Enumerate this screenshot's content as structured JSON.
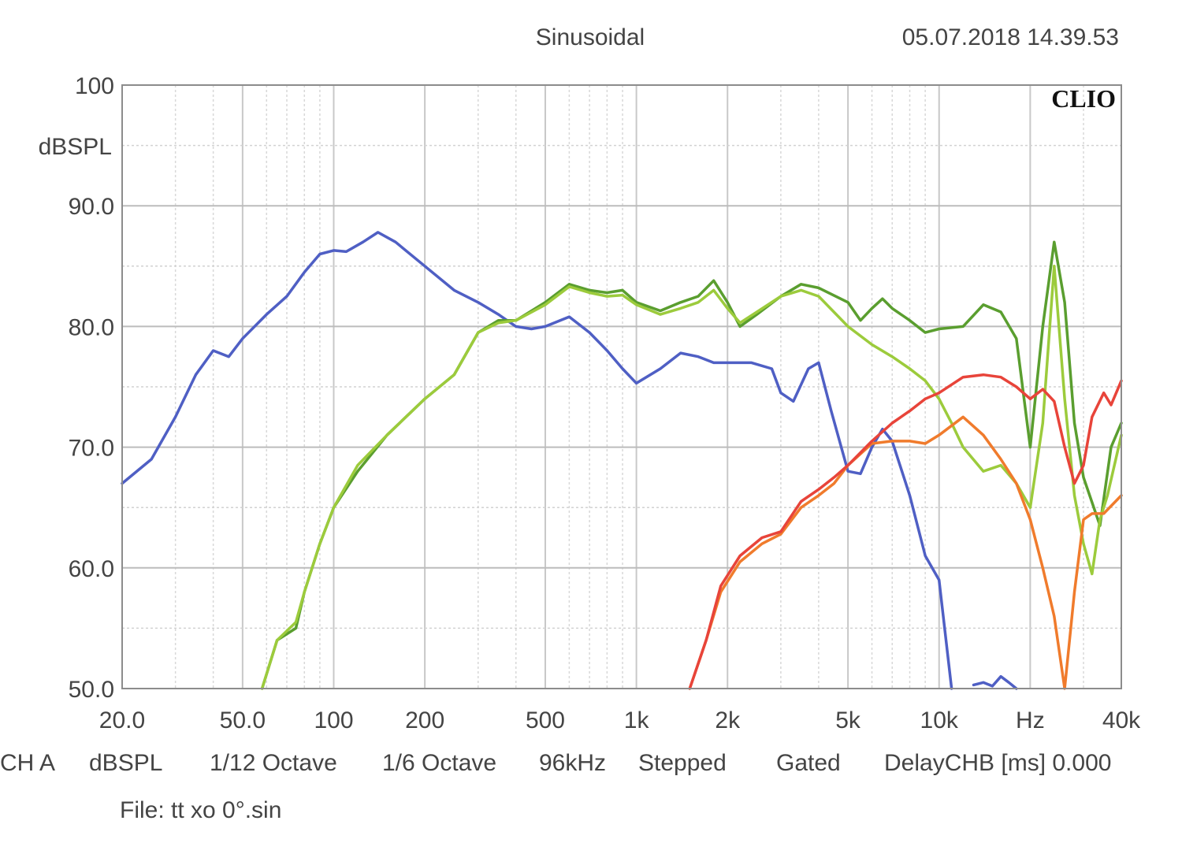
{
  "header": {
    "mode": "Sinusoidal",
    "datetime": "05.07.2018 14.39.53",
    "brand": "CLIO"
  },
  "chart_data": {
    "type": "line",
    "title": "",
    "ylabel": "dBSPL",
    "xscale": "log",
    "xlim": [
      20,
      40000
    ],
    "ylim": [
      50,
      100
    ],
    "grid": true,
    "y_tick_labels": [
      "100",
      "90.0",
      "80.0",
      "70.0",
      "60.0",
      "50.0"
    ],
    "x_ticks": [
      {
        "value": 20,
        "label": "20.0"
      },
      {
        "value": 50,
        "label": "50.0"
      },
      {
        "value": 100,
        "label": "100"
      },
      {
        "value": 200,
        "label": "200"
      },
      {
        "value": 500,
        "label": "500"
      },
      {
        "value": 1000,
        "label": "1k"
      },
      {
        "value": 2000,
        "label": "2k"
      },
      {
        "value": 5000,
        "label": "5k"
      },
      {
        "value": 10000,
        "label": "10k"
      },
      {
        "value": 20000,
        "label": "Hz"
      },
      {
        "value": 40000,
        "label": "40k"
      }
    ],
    "series": [
      {
        "color": "#4f5fc4",
        "points": [
          [
            20,
            67
          ],
          [
            25,
            69
          ],
          [
            30,
            72.5
          ],
          [
            35,
            76
          ],
          [
            40,
            78
          ],
          [
            45,
            77.5
          ],
          [
            50,
            79
          ],
          [
            60,
            81
          ],
          [
            70,
            82.5
          ],
          [
            80,
            84.5
          ],
          [
            90,
            86
          ],
          [
            100,
            86.3
          ],
          [
            110,
            86.2
          ],
          [
            125,
            87
          ],
          [
            140,
            87.8
          ],
          [
            160,
            87
          ],
          [
            200,
            85
          ],
          [
            250,
            83
          ],
          [
            300,
            82
          ],
          [
            350,
            81
          ],
          [
            400,
            80
          ],
          [
            450,
            79.8
          ],
          [
            500,
            80
          ],
          [
            600,
            80.8
          ],
          [
            700,
            79.5
          ],
          [
            800,
            78
          ],
          [
            900,
            76.5
          ],
          [
            1000,
            75.3
          ],
          [
            1200,
            76.5
          ],
          [
            1400,
            77.8
          ],
          [
            1600,
            77.5
          ],
          [
            1800,
            77
          ],
          [
            2000,
            77
          ],
          [
            2400,
            77
          ],
          [
            2800,
            76.5
          ],
          [
            3000,
            74.5
          ],
          [
            3300,
            73.8
          ],
          [
            3700,
            76.5
          ],
          [
            4000,
            77
          ],
          [
            4400,
            73
          ],
          [
            5000,
            68
          ],
          [
            5500,
            67.8
          ],
          [
            6000,
            70
          ],
          [
            6500,
            71.5
          ],
          [
            7000,
            70.5
          ],
          [
            8000,
            66
          ],
          [
            9000,
            61
          ],
          [
            10000,
            59
          ],
          [
            11000,
            50
          ]
        ]
      },
      {
        "color": "#5a9e2f",
        "points": [
          [
            58,
            50
          ],
          [
            65,
            54
          ],
          [
            75,
            55
          ],
          [
            80,
            58
          ],
          [
            90,
            62
          ],
          [
            100,
            65
          ],
          [
            120,
            68
          ],
          [
            150,
            71
          ],
          [
            200,
            74
          ],
          [
            250,
            76
          ],
          [
            300,
            79.5
          ],
          [
            350,
            80.5
          ],
          [
            400,
            80.5
          ],
          [
            500,
            82
          ],
          [
            600,
            83.5
          ],
          [
            700,
            83
          ],
          [
            800,
            82.8
          ],
          [
            900,
            83
          ],
          [
            1000,
            82
          ],
          [
            1200,
            81.3
          ],
          [
            1400,
            82
          ],
          [
            1600,
            82.5
          ],
          [
            1800,
            83.8
          ],
          [
            2000,
            82
          ],
          [
            2200,
            80
          ],
          [
            2500,
            81
          ],
          [
            3000,
            82.5
          ],
          [
            3500,
            83.5
          ],
          [
            4000,
            83.2
          ],
          [
            5000,
            82
          ],
          [
            5500,
            80.5
          ],
          [
            6000,
            81.5
          ],
          [
            6500,
            82.3
          ],
          [
            7000,
            81.5
          ],
          [
            8000,
            80.5
          ],
          [
            9000,
            79.5
          ],
          [
            10000,
            79.8
          ],
          [
            12000,
            80
          ],
          [
            14000,
            81.8
          ],
          [
            16000,
            81.2
          ],
          [
            18000,
            79
          ],
          [
            20000,
            70
          ],
          [
            22000,
            80
          ],
          [
            24000,
            87
          ],
          [
            26000,
            82
          ],
          [
            28000,
            72
          ],
          [
            30000,
            67.5
          ],
          [
            34000,
            63.5
          ],
          [
            37000,
            70
          ],
          [
            40000,
            72
          ]
        ]
      },
      {
        "color": "#9ccb3c",
        "points": [
          [
            58,
            50
          ],
          [
            65,
            54
          ],
          [
            75,
            55.5
          ],
          [
            80,
            58
          ],
          [
            90,
            62
          ],
          [
            100,
            65
          ],
          [
            120,
            68.5
          ],
          [
            150,
            71
          ],
          [
            200,
            74
          ],
          [
            250,
            76
          ],
          [
            300,
            79.5
          ],
          [
            350,
            80.3
          ],
          [
            400,
            80.5
          ],
          [
            500,
            81.8
          ],
          [
            600,
            83.3
          ],
          [
            700,
            82.8
          ],
          [
            800,
            82.5
          ],
          [
            900,
            82.6
          ],
          [
            1000,
            81.8
          ],
          [
            1200,
            81
          ],
          [
            1400,
            81.5
          ],
          [
            1600,
            82
          ],
          [
            1800,
            83
          ],
          [
            2000,
            81.5
          ],
          [
            2200,
            80.3
          ],
          [
            2500,
            81.2
          ],
          [
            3000,
            82.5
          ],
          [
            3500,
            83
          ],
          [
            4000,
            82.5
          ],
          [
            5000,
            80
          ],
          [
            6000,
            78.5
          ],
          [
            7000,
            77.5
          ],
          [
            8000,
            76.5
          ],
          [
            9000,
            75.5
          ],
          [
            10000,
            74
          ],
          [
            11000,
            72
          ],
          [
            12000,
            70
          ],
          [
            14000,
            68
          ],
          [
            16000,
            68.5
          ],
          [
            18000,
            67
          ],
          [
            20000,
            65
          ],
          [
            22000,
            72
          ],
          [
            24000,
            85
          ],
          [
            26000,
            74
          ],
          [
            28000,
            66
          ],
          [
            30000,
            62
          ],
          [
            32000,
            59.5
          ],
          [
            34000,
            64
          ],
          [
            36000,
            66
          ],
          [
            40000,
            71
          ]
        ]
      },
      {
        "color": "#f07b2c",
        "points": [
          [
            1500,
            50
          ],
          [
            1700,
            54
          ],
          [
            1900,
            58
          ],
          [
            2200,
            60.5
          ],
          [
            2600,
            62
          ],
          [
            3000,
            62.8
          ],
          [
            3500,
            65
          ],
          [
            4000,
            66
          ],
          [
            4500,
            67
          ],
          [
            5000,
            68.5
          ],
          [
            6000,
            70.3
          ],
          [
            7000,
            70.5
          ],
          [
            8000,
            70.5
          ],
          [
            9000,
            70.3
          ],
          [
            10000,
            71
          ],
          [
            12000,
            72.5
          ],
          [
            14000,
            71
          ],
          [
            16000,
            69
          ],
          [
            18000,
            67
          ],
          [
            20000,
            64
          ],
          [
            22000,
            60
          ],
          [
            24000,
            56
          ],
          [
            26000,
            50
          ],
          [
            28000,
            58
          ],
          [
            30000,
            64
          ],
          [
            32000,
            64.5
          ],
          [
            35000,
            64.5
          ],
          [
            40000,
            66
          ]
        ]
      },
      {
        "color": "#e8443a",
        "points": [
          [
            1500,
            50
          ],
          [
            1700,
            54
          ],
          [
            1900,
            58.5
          ],
          [
            2200,
            61
          ],
          [
            2600,
            62.5
          ],
          [
            3000,
            63
          ],
          [
            3500,
            65.5
          ],
          [
            4000,
            66.5
          ],
          [
            4500,
            67.5
          ],
          [
            5000,
            68.5
          ],
          [
            6000,
            70.5
          ],
          [
            7000,
            72
          ],
          [
            8000,
            73
          ],
          [
            9000,
            74
          ],
          [
            10000,
            74.5
          ],
          [
            12000,
            75.8
          ],
          [
            14000,
            76
          ],
          [
            16000,
            75.8
          ],
          [
            18000,
            75
          ],
          [
            20000,
            74
          ],
          [
            22000,
            74.8
          ],
          [
            24000,
            73.8
          ],
          [
            26000,
            70
          ],
          [
            28000,
            67
          ],
          [
            30000,
            68.5
          ],
          [
            32000,
            72.5
          ],
          [
            35000,
            74.5
          ],
          [
            37000,
            73.5
          ],
          [
            40000,
            75.5
          ]
        ]
      },
      {
        "color": "#4f5fc4",
        "points": [
          [
            13000,
            50.3
          ],
          [
            14000,
            50.5
          ],
          [
            15000,
            50.2
          ],
          [
            16000,
            51
          ],
          [
            17000,
            50.5
          ],
          [
            18000,
            50
          ]
        ]
      }
    ]
  },
  "info": {
    "channel": "CH A",
    "unit": "dBSPL",
    "smoothing": "1/12 Octave",
    "resolution": "1/6 Octave",
    "sample_rate": "96kHz",
    "sweep": "Stepped",
    "window": "Gated",
    "delay": "DelayCHB [ms] 0.000"
  },
  "file": {
    "label": "File: tt xo 0°.sin"
  }
}
